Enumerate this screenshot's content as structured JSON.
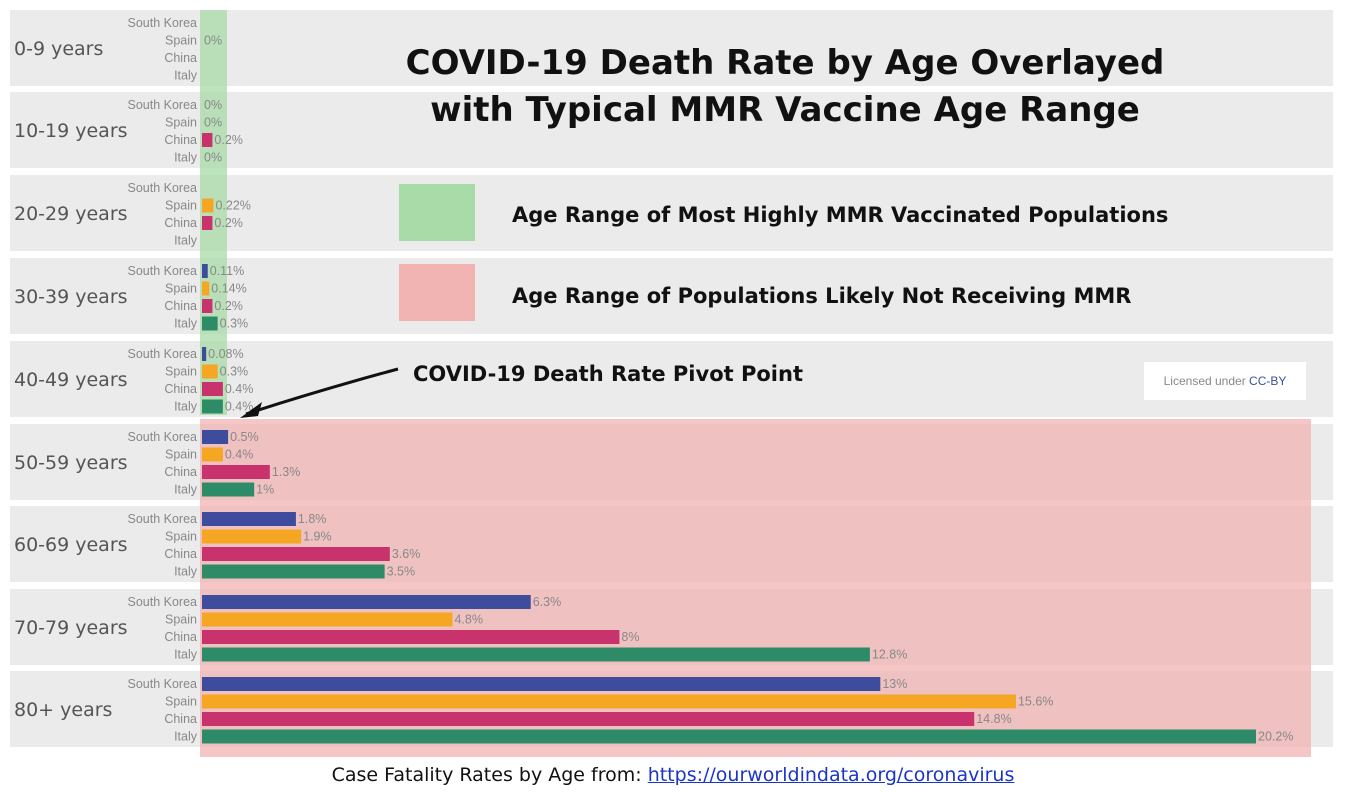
{
  "title_line1": "COVID-19 Death Rate by Age Overlayed",
  "title_line2": "with Typical MMR Vaccine Age Range",
  "legend": {
    "green_label": "Age Range of Most Highly MMR Vaccinated Populations",
    "red_label": "Age Range of Populations Likely Not Receiving MMR",
    "green_color": "#a8dba8",
    "red_color": "#f2b3b3"
  },
  "annotation": "COVID-19 Death Rate Pivot Point",
  "license": {
    "prefix": "Licensed under",
    "link": "CC-BY"
  },
  "footer": {
    "prefix": "Case Fatality Rates by Age from:",
    "link": "https://ourworldindata.org/coronavirus"
  },
  "colors": {
    "South Korea": "#3d4c9c",
    "Spain": "#f5a623",
    "China": "#c8336e",
    "Italy": "#2e8b67",
    "group_bg": "#ebebeb"
  },
  "chart_data": {
    "type": "bar",
    "orientation": "horizontal",
    "unit": "%",
    "xlim": [
      0,
      20.2
    ],
    "series_names": [
      "South Korea",
      "Spain",
      "China",
      "Italy"
    ],
    "groups": [
      {
        "label": "0-9 years",
        "rows": [
          {
            "country": "South Korea",
            "value": null,
            "label": ""
          },
          {
            "country": "Spain",
            "value": 0,
            "label": "0%"
          },
          {
            "country": "China",
            "value": null,
            "label": ""
          },
          {
            "country": "Italy",
            "value": null,
            "label": ""
          }
        ]
      },
      {
        "label": "10-19 years",
        "rows": [
          {
            "country": "South Korea",
            "value": 0,
            "label": "0%"
          },
          {
            "country": "Spain",
            "value": 0,
            "label": "0%"
          },
          {
            "country": "China",
            "value": 0.2,
            "label": "0.2%"
          },
          {
            "country": "Italy",
            "value": 0,
            "label": "0%"
          }
        ]
      },
      {
        "label": "20-29 years",
        "rows": [
          {
            "country": "South Korea",
            "value": null,
            "label": ""
          },
          {
            "country": "Spain",
            "value": 0.22,
            "label": "0.22%"
          },
          {
            "country": "China",
            "value": 0.2,
            "label": "0.2%"
          },
          {
            "country": "Italy",
            "value": null,
            "label": ""
          }
        ]
      },
      {
        "label": "30-39 years",
        "rows": [
          {
            "country": "South Korea",
            "value": 0.11,
            "label": "0.11%"
          },
          {
            "country": "Spain",
            "value": 0.14,
            "label": "0.14%"
          },
          {
            "country": "China",
            "value": 0.2,
            "label": "0.2%"
          },
          {
            "country": "Italy",
            "value": 0.3,
            "label": "0.3%"
          }
        ]
      },
      {
        "label": "40-49 years",
        "rows": [
          {
            "country": "South Korea",
            "value": 0.08,
            "label": "0.08%"
          },
          {
            "country": "Spain",
            "value": 0.3,
            "label": "0.3%"
          },
          {
            "country": "China",
            "value": 0.4,
            "label": "0.4%"
          },
          {
            "country": "Italy",
            "value": 0.4,
            "label": "0.4%"
          }
        ]
      },
      {
        "label": "50-59 years",
        "rows": [
          {
            "country": "South Korea",
            "value": 0.5,
            "label": "0.5%"
          },
          {
            "country": "Spain",
            "value": 0.4,
            "label": "0.4%"
          },
          {
            "country": "China",
            "value": 1.3,
            "label": "1.3%"
          },
          {
            "country": "Italy",
            "value": 1,
            "label": "1%"
          }
        ]
      },
      {
        "label": "60-69 years",
        "rows": [
          {
            "country": "South Korea",
            "value": 1.8,
            "label": "1.8%"
          },
          {
            "country": "Spain",
            "value": 1.9,
            "label": "1.9%"
          },
          {
            "country": "China",
            "value": 3.6,
            "label": "3.6%"
          },
          {
            "country": "Italy",
            "value": 3.5,
            "label": "3.5%"
          }
        ]
      },
      {
        "label": "70-79 years",
        "rows": [
          {
            "country": "South Korea",
            "value": 6.3,
            "label": "6.3%"
          },
          {
            "country": "Spain",
            "value": 4.8,
            "label": "4.8%"
          },
          {
            "country": "China",
            "value": 8,
            "label": "8%"
          },
          {
            "country": "Italy",
            "value": 12.8,
            "label": "12.8%"
          }
        ]
      },
      {
        "label": "80+ years",
        "rows": [
          {
            "country": "South Korea",
            "value": 13,
            "label": "13%"
          },
          {
            "country": "Spain",
            "value": 15.6,
            "label": "15.6%"
          },
          {
            "country": "China",
            "value": 14.8,
            "label": "14.8%"
          },
          {
            "country": "Italy",
            "value": 20.2,
            "label": "20.2%"
          }
        ]
      }
    ]
  }
}
